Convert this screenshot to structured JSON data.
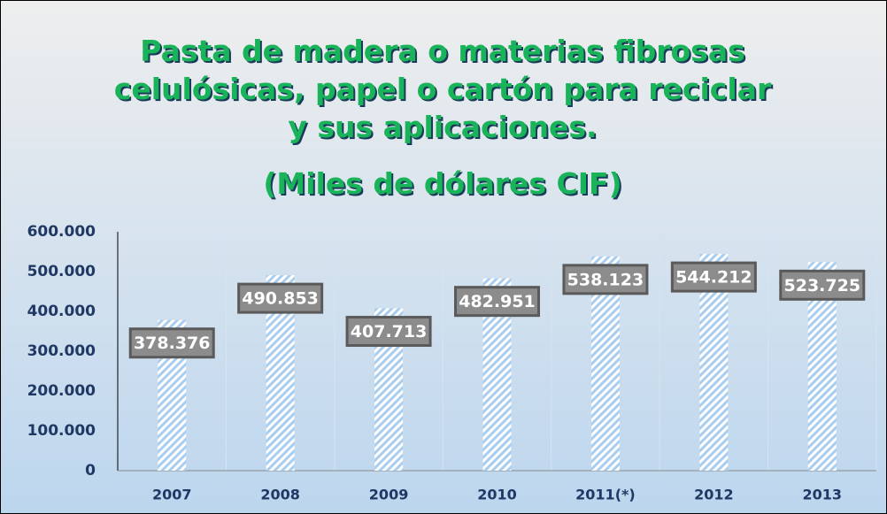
{
  "chart_data": {
    "type": "bar",
    "title": "Pasta de madera o materias fibrosas celulósicas, papel o cartón para reciclar y sus aplicaciones.",
    "subtitle": "(Miles de dólares CIF)",
    "categories": [
      "2007",
      "2008",
      "2009",
      "2010",
      "2011(*)",
      "2012",
      "2013"
    ],
    "values": [
      378376,
      490853,
      407713,
      482951,
      538123,
      544212,
      523725
    ],
    "value_labels": [
      "378.376",
      "490.853",
      "407.713",
      "482.951",
      "538.123",
      "544.212",
      "523.725"
    ],
    "color": "#a9cdef",
    "ylim": [
      0,
      600000
    ],
    "yticks": [
      0,
      {
        "value": 100000,
        "label": "100.000"
      },
      {
        "value": 200000,
        "label": "200.000"
      },
      {
        "value": 300000,
        "label": "300.000"
      },
      {
        "value": 400000,
        "label": "400.000"
      },
      {
        "value": 500000,
        "label": "500.000"
      },
      {
        "value": 600000,
        "label": "600.000"
      }
    ],
    "grid": true
  }
}
